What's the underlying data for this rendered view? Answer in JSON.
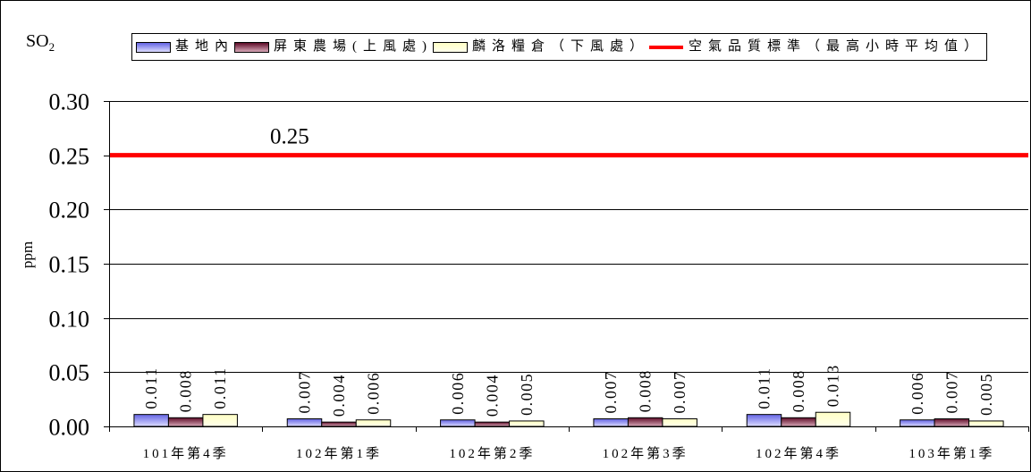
{
  "chart_data": {
    "type": "bar",
    "title": "SO",
    "title_subscript": "2",
    "xlabel": "",
    "ylabel": "ppm",
    "categories": [
      "101年第4季",
      "102年第1季",
      "102年第2季",
      "102年第3季",
      "102年第4季",
      "103年第1季"
    ],
    "series": [
      {
        "name": "基地內",
        "values": [
          0.011,
          0.007,
          0.006,
          0.007,
          0.011,
          0.006
        ],
        "color": "#7a7aec",
        "gradient": [
          "#6464e4",
          "#dcdcff"
        ]
      },
      {
        "name": "屏東農場(上風處)",
        "values": [
          0.008,
          0.004,
          0.004,
          0.008,
          0.008,
          0.007
        ],
        "color": "#7a1838",
        "gradient": [
          "#5e0c28",
          "#d8a8b8"
        ]
      },
      {
        "name": "麟洛糧倉（下風處）",
        "values": [
          0.011,
          0.006,
          0.005,
          0.007,
          0.013,
          0.005
        ],
        "color": "#ffffcc",
        "gradient": [
          "#ffffc4",
          "#ffffec"
        ]
      }
    ],
    "reference_line": {
      "name": "空氣品質標準（最高小時平均值）",
      "value": 0.25,
      "label": "0.25",
      "color": "#ff0000"
    },
    "ylim": [
      0,
      0.3
    ],
    "yticks": [
      "0.00",
      "0.05",
      "0.10",
      "0.15",
      "0.20",
      "0.25",
      "0.30"
    ],
    "data_labels": true,
    "grid": true,
    "legend_position": "top"
  }
}
